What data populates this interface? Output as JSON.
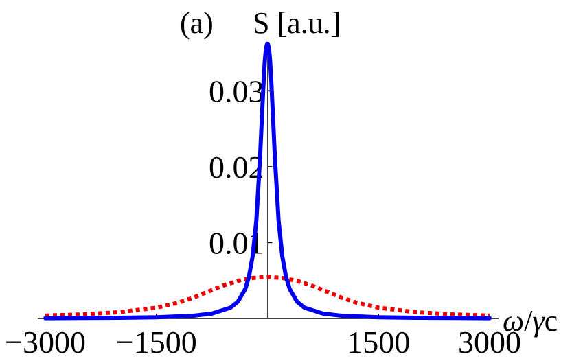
{
  "chart_data": {
    "type": "line",
    "panel_label": "(a)",
    "ylabel": "S [a.u.]",
    "xlabel_parts": {
      "omega": "ω",
      "slash": "/",
      "gamma": "γ",
      "c": "c"
    },
    "xlim": [
      -3000,
      3000
    ],
    "ylim": [
      0,
      0.036
    ],
    "x_ticks": [
      -3000,
      -1500,
      1500,
      3000
    ],
    "x_tick_labels": [
      "−3000",
      "−1500",
      "1500",
      "3000"
    ],
    "y_ticks": [
      0.01,
      0.02,
      0.03
    ],
    "y_tick_labels": [
      "0.01",
      "0.02",
      "0.03"
    ],
    "grid": false,
    "series": [
      {
        "style": "solid",
        "color": "#0000ee",
        "x": [
          -3000,
          -2500,
          -2000,
          -1500,
          -1000,
          -750,
          -500,
          -400,
          -300,
          -250,
          -200,
          -150,
          -100,
          -75,
          -50,
          -35,
          -25,
          -15,
          -5,
          0,
          5,
          15,
          25,
          35,
          50,
          75,
          100,
          150,
          200,
          250,
          300,
          400,
          500,
          750,
          1000,
          1500,
          2000,
          2500,
          3000
        ],
        "y": [
          4e-05,
          6e-05,
          9e-05,
          0.00016,
          0.00036,
          0.00064,
          0.00142,
          0.00221,
          0.00388,
          0.00549,
          0.00819,
          0.0129,
          0.0212,
          0.0265,
          0.0316,
          0.034,
          0.0351,
          0.0358,
          0.0362,
          0.0362,
          0.0362,
          0.0358,
          0.0351,
          0.034,
          0.0316,
          0.0265,
          0.0212,
          0.0129,
          0.00819,
          0.00549,
          0.00388,
          0.00221,
          0.00142,
          0.00064,
          0.00036,
          0.00016,
          9e-05,
          6e-05,
          4e-05
        ]
      },
      {
        "style": "dotted",
        "color": "#ee0000",
        "x": [
          -3000,
          -2500,
          -2000,
          -1500,
          -1200,
          -1000,
          -800,
          -600,
          -400,
          -200,
          0,
          200,
          400,
          600,
          800,
          1000,
          1200,
          1500,
          2000,
          2500,
          3000
        ],
        "y": [
          0.00038,
          0.00054,
          0.00083,
          0.00142,
          0.00209,
          0.00275,
          0.00355,
          0.00433,
          0.00496,
          0.00534,
          0.00548,
          0.00534,
          0.00496,
          0.00433,
          0.00355,
          0.00275,
          0.00209,
          0.00142,
          0.00083,
          0.00054,
          0.00038
        ]
      }
    ]
  }
}
